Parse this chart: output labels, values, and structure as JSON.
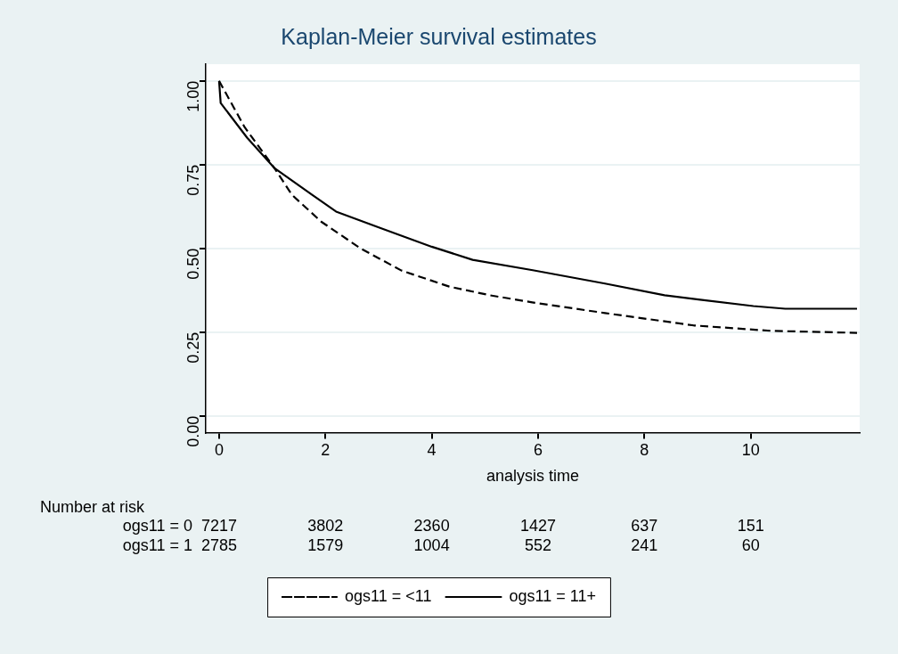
{
  "chart_data": {
    "type": "line",
    "title": "Kaplan-Meier survival estimates",
    "xlabel": "analysis time",
    "xlim": [
      -0.25,
      12.05
    ],
    "xticks": [
      0,
      2,
      4,
      6,
      8,
      10
    ],
    "ylim": [
      -0.05,
      1.05
    ],
    "yticks": [
      {
        "value": 0,
        "label": "0.00"
      },
      {
        "value": 0.25,
        "label": "0.25"
      },
      {
        "value": 0.5,
        "label": "0.50"
      },
      {
        "value": 0.75,
        "label": "0.75"
      },
      {
        "value": 1,
        "label": "1.00"
      }
    ],
    "grid": "y",
    "legend": "bottom",
    "marker": "none",
    "series": [
      {
        "name": "ogs11 = <11",
        "color": "#000000",
        "line_style": "dashed",
        "x": [
          0,
          0.48,
          1.04,
          1.37,
          1.92,
          2.66,
          3.43,
          4.33,
          5.1,
          5.89,
          7.26,
          8.93,
          10.38,
          12.0
        ],
        "values": [
          1.0,
          0.862,
          0.74,
          0.66,
          0.58,
          0.5,
          0.434,
          0.386,
          0.36,
          0.339,
          0.307,
          0.27,
          0.254,
          0.248
        ]
      },
      {
        "name": "ogs11 = 11+",
        "color": "#000000",
        "line_style": "solid",
        "x": [
          0,
          0.03,
          0.53,
          1.04,
          1.75,
          2.2,
          3.05,
          4.0,
          4.77,
          5.9,
          7.26,
          8.38,
          9.05,
          10.05,
          10.65,
          12.0
        ],
        "values": [
          1.0,
          0.934,
          0.83,
          0.74,
          0.66,
          0.61,
          0.56,
          0.505,
          0.466,
          0.435,
          0.395,
          0.36,
          0.347,
          0.328,
          0.32,
          0.32
        ]
      }
    ],
    "annotations": [
      "Number at risk",
      "ogs11 = 0",
      "7217",
      "3802",
      "2360",
      "1427",
      "637",
      "151",
      "ogs11 = 1",
      "2785",
      "1579",
      "1004",
      "552",
      "241",
      "60"
    ]
  }
}
